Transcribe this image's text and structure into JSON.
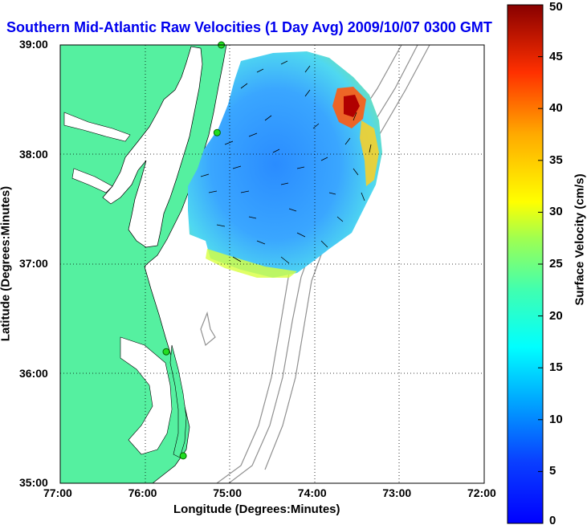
{
  "title": "Southern Mid-Atlantic Raw Velocities (1 Day Avg) 2009/10/07 0300 GMT",
  "map": {
    "xlabel": "Longitude (Degrees:Minutes)",
    "ylabel": "Latitude (Degrees:Minutes)",
    "x_ticks": [
      "77:00",
      "76:00",
      "75:00",
      "74:00",
      "73:00",
      "72:00"
    ],
    "y_ticks": [
      "39:00",
      "38:00",
      "37:00",
      "36:00",
      "35:00"
    ],
    "lon_range": [
      -77,
      -72
    ],
    "lat_range": [
      35,
      39
    ],
    "grid": "dotted",
    "land_color": "#55f0a0",
    "contour_color": "#909090"
  },
  "colorbar": {
    "label": "Surface Velocity (cm/s)",
    "ticks": [
      "50",
      "45",
      "40",
      "35",
      "30",
      "25",
      "20",
      "15",
      "10",
      "5",
      "0"
    ],
    "min": 0,
    "max": 50,
    "colormap": "jet"
  },
  "stations": [
    {
      "lon": -75.1,
      "lat": 39.0
    },
    {
      "lon": -75.15,
      "lat": 38.2
    },
    {
      "lon": -75.75,
      "lat": 36.2
    },
    {
      "lon": -75.55,
      "lat": 35.25
    }
  ]
}
